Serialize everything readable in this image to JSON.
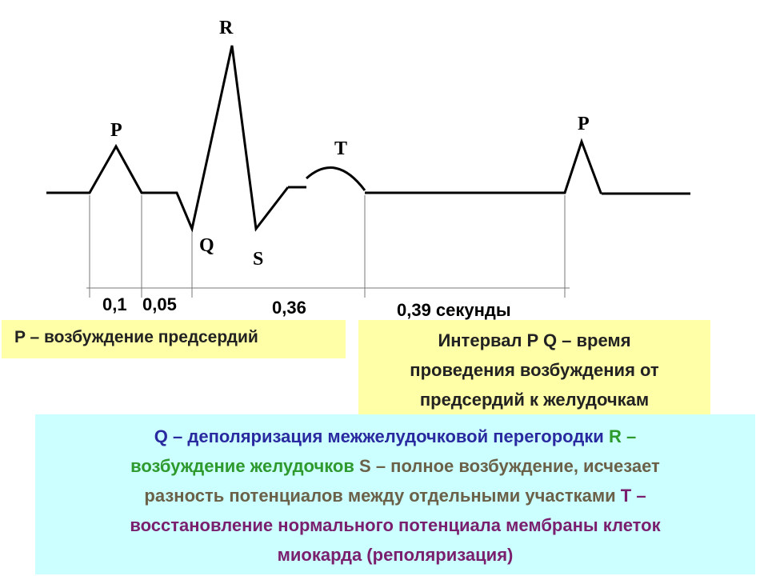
{
  "waves": {
    "p1": "P",
    "q": "Q",
    "r": "R",
    "s": "S",
    "t": "T",
    "p2": "P"
  },
  "intervals": {
    "pr": "0,1",
    "qrs": "0,05",
    "st": "0,36",
    "diastole": "0,39 секунды"
  },
  "boxes": {
    "p_desc": "P – возбуждение предсердий",
    "pq_line1": "Интервал P Q – время",
    "pq_line2": "проведения возбуждения от",
    "pq_line3": "предсердий к желудочкам"
  },
  "description": {
    "line1_a": "Q – деполяризация межжелудочковой перегородки",
    "line1_b": "R –",
    "line2_a": "возбуждение желудочков",
    "line2_b": "S – полное возбуждение, исчезает",
    "line3_a": "разность потенциалов между отдельными участками",
    "line3_b": "T –",
    "line4": "восстановление нормального потенциала мембраны клеток",
    "line5": "миокарда (реполяризация)"
  },
  "colors": {
    "q_text": "#2a2aa0",
    "r_text": "#2e9a2e",
    "s_text": "#6b6048",
    "t_text": "#7a1e6e",
    "yellow_box": "#ffffa8",
    "cyan_box": "#ccffff"
  }
}
